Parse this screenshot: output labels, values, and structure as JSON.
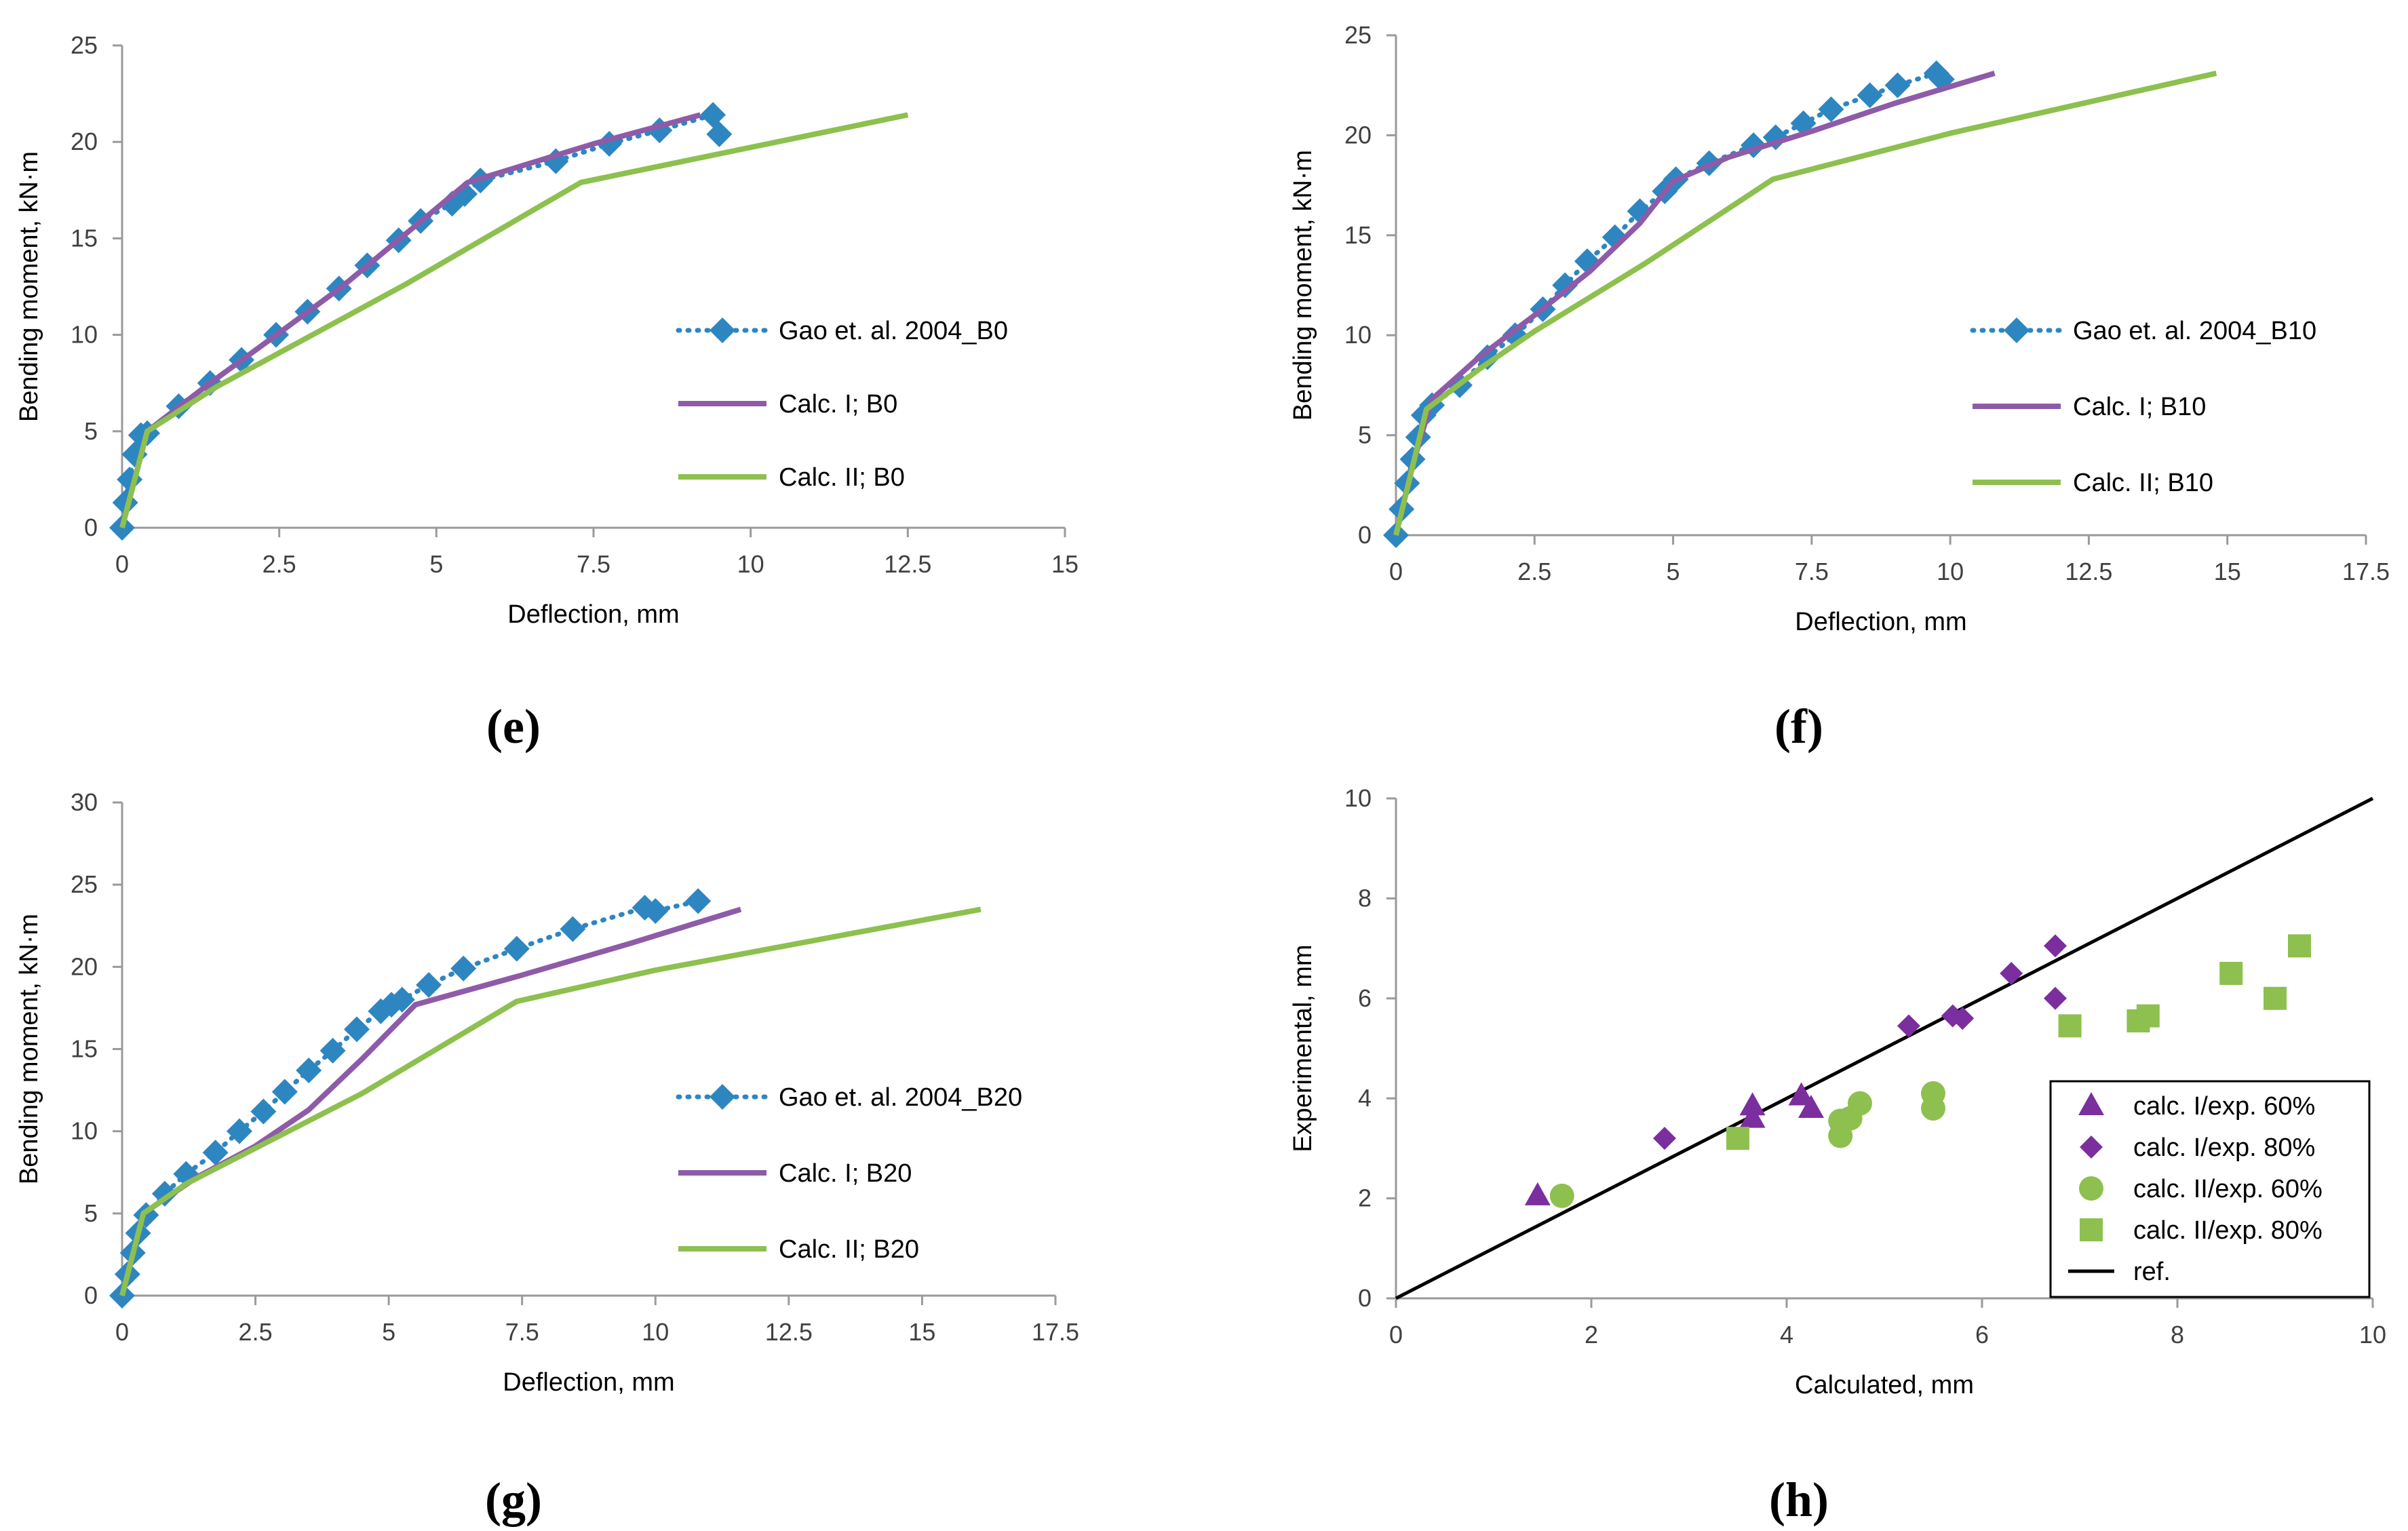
{
  "chart_data": [
    {
      "id": "e",
      "type": "line",
      "panel_label": "(e)",
      "xlabel": "Deflection, mm",
      "ylabel": "Bending moment, kN·m",
      "xlim": [
        0,
        15
      ],
      "ylim": [
        0,
        25
      ],
      "xticks": [
        0,
        2.5,
        5,
        7.5,
        10,
        12.5,
        15
      ],
      "yticks": [
        0,
        5,
        10,
        15,
        20,
        25
      ],
      "xtick_labels": [
        "0",
        "2.5",
        "5",
        "7.5",
        "10",
        "12.5",
        "15"
      ],
      "ytick_labels": [
        "0",
        "5",
        "10",
        "15",
        "20",
        "25"
      ],
      "legend_position": "center-right",
      "series": [
        {
          "name": "Gao et. al. 2004_B0",
          "style": "dotted-diamond",
          "color": "#2E86C1",
          "x": [
            0,
            0.05,
            0.12,
            0.2,
            0.3,
            0.4,
            0.9,
            1.4,
            1.9,
            2.45,
            2.95,
            3.45,
            3.9,
            4.4,
            4.75,
            5.25,
            5.45,
            5.7,
            6.9,
            7.75,
            8.55,
            9.4,
            9.5
          ],
          "y": [
            0,
            1.3,
            2.5,
            3.8,
            4.8,
            4.9,
            6.3,
            7.5,
            8.7,
            10.0,
            11.2,
            12.4,
            13.6,
            14.9,
            15.9,
            16.8,
            17.3,
            18.0,
            19.0,
            19.9,
            20.6,
            21.4,
            20.4
          ]
        },
        {
          "name": "Calc. I; B0",
          "style": "solid",
          "color": "#8E5BA8",
          "x": [
            0,
            0.4,
            1.4,
            2.5,
            3.5,
            4.5,
            5.5,
            6.5,
            7.5,
            9.2
          ],
          "y": [
            0,
            5.0,
            7.5,
            10.1,
            12.5,
            15.2,
            17.9,
            18.9,
            19.9,
            21.4
          ]
        },
        {
          "name": "Calc. II; B0",
          "style": "solid",
          "color": "#8DC04F",
          "x": [
            0,
            0.4,
            1.5,
            4.5,
            7.3,
            12.5
          ],
          "y": [
            0,
            5.0,
            7.3,
            12.6,
            17.9,
            21.4
          ]
        }
      ]
    },
    {
      "id": "f",
      "type": "line",
      "panel_label": "(f)",
      "xlabel": "Deflection, mm",
      "ylabel": "Bending moment, kN·m",
      "xlim": [
        0,
        17.5
      ],
      "ylim": [
        0,
        25
      ],
      "xticks": [
        0,
        2.5,
        5,
        7.5,
        10,
        12.5,
        15,
        17.5
      ],
      "yticks": [
        0,
        5,
        10,
        15,
        20,
        25
      ],
      "xtick_labels": [
        "0",
        "2.5",
        "5",
        "7.5",
        "10",
        "12.5",
        "15",
        "17.5"
      ],
      "ytick_labels": [
        "0",
        "5",
        "10",
        "15",
        "20",
        "25"
      ],
      "legend_position": "center-right",
      "series": [
        {
          "name": "Gao et. al. 2004_B10",
          "style": "dotted-diamond",
          "color": "#2E86C1",
          "x": [
            0,
            0.1,
            0.2,
            0.3,
            0.4,
            0.5,
            0.65,
            1.15,
            1.65,
            2.15,
            2.65,
            3.05,
            3.45,
            3.95,
            4.4,
            4.85,
            5.05,
            5.65,
            6.45,
            6.85,
            7.35,
            7.85,
            8.55,
            9.05,
            9.75,
            9.85
          ],
          "y": [
            0,
            1.3,
            2.6,
            3.8,
            4.9,
            6.0,
            6.5,
            7.5,
            8.9,
            10.0,
            11.3,
            12.5,
            13.7,
            14.9,
            16.2,
            17.2,
            17.8,
            18.6,
            19.5,
            19.9,
            20.6,
            21.3,
            22.0,
            22.5,
            23.1,
            22.8
          ]
        },
        {
          "name": "Calc. I; B10",
          "style": "solid",
          "color": "#8E5BA8",
          "x": [
            0,
            0.3,
            0.65,
            1.5,
            2.5,
            3.5,
            4.4,
            5.0,
            6.0,
            7.5,
            9.0,
            10.8
          ],
          "y": [
            0,
            3.5,
            6.8,
            8.9,
            11.0,
            13.2,
            15.6,
            17.7,
            18.9,
            20.2,
            21.6,
            23.1
          ]
        },
        {
          "name": "Calc. II; B10",
          "style": "solid",
          "color": "#8DC04F",
          "x": [
            0,
            0.55,
            1.5,
            2.5,
            4.5,
            6.8,
            10.0,
            14.8
          ],
          "y": [
            0,
            6.3,
            8.3,
            10.2,
            13.6,
            17.8,
            20.1,
            23.1
          ]
        }
      ]
    },
    {
      "id": "g",
      "type": "line",
      "panel_label": "(g)",
      "xlabel": "Deflection, mm",
      "ylabel": "Bending moment, kN·m",
      "xlim": [
        0,
        17.5
      ],
      "ylim": [
        0,
        30
      ],
      "xticks": [
        0,
        2.5,
        5,
        7.5,
        10,
        12.5,
        15,
        17.5
      ],
      "yticks": [
        0,
        5,
        10,
        15,
        20,
        25,
        30
      ],
      "xtick_labels": [
        "0",
        "2.5",
        "5",
        "7.5",
        "10",
        "12.5",
        "15",
        "17.5"
      ],
      "ytick_labels": [
        "0",
        "5",
        "10",
        "15",
        "20",
        "25",
        "30"
      ],
      "legend_position": "center-right",
      "series": [
        {
          "name": "Gao et. al. 2004_B20",
          "style": "dotted-diamond",
          "color": "#2E86C1",
          "x": [
            0,
            0.1,
            0.2,
            0.3,
            0.45,
            0.8,
            1.2,
            1.75,
            2.2,
            2.65,
            3.05,
            3.5,
            3.95,
            4.4,
            4.85,
            5.05,
            5.25,
            5.75,
            6.4,
            7.4,
            8.45,
            9.8,
            10.0,
            10.8
          ],
          "y": [
            0,
            1.3,
            2.6,
            3.8,
            4.9,
            6.2,
            7.4,
            8.7,
            10.0,
            11.2,
            12.4,
            13.7,
            14.9,
            16.2,
            17.3,
            17.7,
            18.0,
            18.9,
            19.9,
            21.1,
            22.3,
            23.6,
            23.4,
            24.0
          ]
        },
        {
          "name": "Calc. I; B20",
          "style": "solid",
          "color": "#8E5BA8",
          "x": [
            0,
            0.4,
            1.4,
            2.5,
            3.5,
            4.5,
            5.5,
            7.5,
            9.5,
            11.6
          ],
          "y": [
            0,
            5.0,
            7.2,
            9.1,
            11.3,
            14.4,
            17.7,
            19.5,
            21.4,
            23.5
          ]
        },
        {
          "name": "Calc. II; B20",
          "style": "solid",
          "color": "#8DC04F",
          "x": [
            0,
            0.4,
            1.2,
            4.5,
            7.4,
            10.0,
            16.1
          ],
          "y": [
            0,
            5.0,
            6.8,
            12.3,
            17.9,
            19.8,
            23.5
          ]
        }
      ]
    },
    {
      "id": "h",
      "type": "scatter",
      "panel_label": "(h)",
      "xlabel": "Calculated, mm",
      "ylabel": "Experimental, mm",
      "xlim": [
        0,
        10
      ],
      "ylim": [
        0,
        10
      ],
      "xticks": [
        0,
        2,
        4,
        6,
        8,
        10
      ],
      "yticks": [
        0,
        2,
        4,
        6,
        8,
        10
      ],
      "xtick_labels": [
        "0",
        "2",
        "4",
        "6",
        "8",
        "10"
      ],
      "ytick_labels": [
        "0",
        "2",
        "4",
        "6",
        "8",
        "10"
      ],
      "legend_position": "bottom-right",
      "series": [
        {
          "name": "calc. I/exp. 60%",
          "marker": "triangle",
          "color": "#7B2E9E",
          "x": [
            1.45,
            3.65,
            3.65,
            4.15,
            4.25
          ],
          "y": [
            2.05,
            3.85,
            3.6,
            4.05,
            3.8
          ]
        },
        {
          "name": "calc. I/exp. 80%",
          "marker": "diamond",
          "color": "#7B2E9E",
          "x": [
            2.75,
            5.25,
            5.7,
            5.8,
            6.3,
            6.75,
            6.75
          ],
          "y": [
            3.2,
            5.45,
            5.65,
            5.6,
            6.5,
            7.05,
            6.0
          ]
        },
        {
          "name": "calc. II/exp. 60%",
          "marker": "circle",
          "color": "#8DC04F",
          "x": [
            1.7,
            4.55,
            4.65,
            4.75,
            5.5,
            5.5,
            4.55
          ],
          "y": [
            2.05,
            3.55,
            3.6,
            3.9,
            4.1,
            3.8,
            3.25
          ]
        },
        {
          "name": "calc. II/exp. 80%",
          "marker": "square",
          "color": "#8DC04F",
          "x": [
            3.5,
            6.9,
            7.6,
            7.7,
            8.55,
            9.0,
            9.25
          ],
          "y": [
            3.2,
            5.45,
            5.55,
            5.65,
            6.5,
            6.0,
            7.05
          ]
        },
        {
          "name": "ref.",
          "marker": "line",
          "color": "#000000",
          "x": [
            0,
            10
          ],
          "y": [
            0,
            10
          ]
        }
      ]
    }
  ]
}
